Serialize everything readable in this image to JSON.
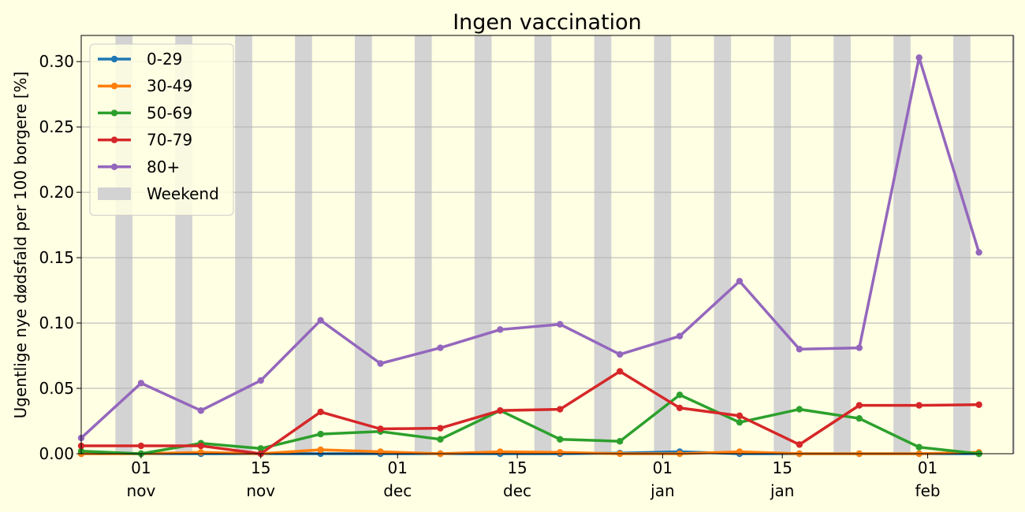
{
  "chart_data": {
    "type": "line",
    "title": "Ingen vaccination",
    "ylabel": "Ugentlige nye dødsfald per 100 borgere [%]",
    "xlabel": "",
    "ylim": [
      0,
      0.32
    ],
    "xlim": [
      "2020-10-25",
      "2021-02-11"
    ],
    "grid": "y",
    "legend": "top-left",
    "y_ticks": [
      0.0,
      0.05,
      0.1,
      0.15,
      0.2,
      0.25,
      0.3
    ],
    "y_tick_labels": [
      "0.00",
      "0.05",
      "0.10",
      "0.15",
      "0.20",
      "0.25",
      "0.30"
    ],
    "x_ticks": [
      {
        "date": "2020-11-01",
        "day": "01",
        "month": "nov"
      },
      {
        "date": "2020-11-15",
        "day": "15",
        "month": "nov"
      },
      {
        "date": "2020-12-01",
        "day": "01",
        "month": "dec"
      },
      {
        "date": "2020-12-15",
        "day": "15",
        "month": "dec"
      },
      {
        "date": "2021-01-01",
        "day": "01",
        "month": "jan"
      },
      {
        "date": "2021-01-15",
        "day": "15",
        "month": "jan"
      },
      {
        "date": "2021-02-01",
        "day": "01",
        "month": "feb"
      }
    ],
    "x": [
      "2020-10-25",
      "2020-11-01",
      "2020-11-08",
      "2020-11-15",
      "2020-11-22",
      "2020-11-29",
      "2020-12-06",
      "2020-12-13",
      "2020-12-20",
      "2020-12-27",
      "2021-01-03",
      "2021-01-10",
      "2021-01-17",
      "2021-01-24",
      "2021-01-31",
      "2021-02-07"
    ],
    "series": [
      {
        "name": "0-29",
        "color": "#1f77b4",
        "values": [
          0.0,
          0.0,
          0.0,
          0.0,
          0.0,
          0.0,
          0.0,
          0.0,
          0.0,
          0.0005,
          0.0015,
          0.0,
          0.0,
          0.0,
          0.0,
          0.0
        ]
      },
      {
        "name": "30-49",
        "color": "#ff7f0e",
        "values": [
          0.0,
          0.0,
          0.001,
          0.0,
          0.003,
          0.0015,
          0.0,
          0.0015,
          0.001,
          0.0,
          0.0,
          0.0015,
          0.0,
          0.0,
          0.0,
          0.001
        ]
      },
      {
        "name": "50-69",
        "color": "#2ca02c",
        "values": [
          0.002,
          0.0,
          0.008,
          0.004,
          0.015,
          0.017,
          0.011,
          0.033,
          0.011,
          0.0095,
          0.045,
          0.024,
          0.034,
          0.027,
          0.005,
          0.0
        ]
      },
      {
        "name": "70-79",
        "color": "#d62728",
        "values": [
          0.006,
          0.006,
          0.006,
          0.0,
          0.032,
          0.019,
          0.0195,
          0.033,
          0.034,
          0.063,
          0.035,
          0.029,
          0.007,
          0.037,
          0.037,
          0.0375
        ]
      },
      {
        "name": "80+",
        "color": "#9467bd",
        "values": [
          0.012,
          0.054,
          0.033,
          0.056,
          0.102,
          0.069,
          0.081,
          0.095,
          0.099,
          0.076,
          0.09,
          0.132,
          0.08,
          0.081,
          0.303,
          0.154
        ]
      }
    ],
    "weekend_label": "Weekend",
    "weekend_color": "#d3d3d3",
    "weekends": [
      [
        "2020-10-29",
        "2020-10-31"
      ],
      [
        "2020-11-05",
        "2020-11-07"
      ],
      [
        "2020-11-12",
        "2020-11-14"
      ],
      [
        "2020-11-19",
        "2020-11-21"
      ],
      [
        "2020-11-26",
        "2020-11-28"
      ],
      [
        "2020-12-03",
        "2020-12-05"
      ],
      [
        "2020-12-10",
        "2020-12-12"
      ],
      [
        "2020-12-17",
        "2020-12-19"
      ],
      [
        "2020-12-24",
        "2020-12-26"
      ],
      [
        "2020-12-31",
        "2021-01-02"
      ],
      [
        "2021-01-07",
        "2021-01-09"
      ],
      [
        "2021-01-14",
        "2021-01-16"
      ],
      [
        "2021-01-21",
        "2021-01-23"
      ],
      [
        "2021-01-28",
        "2021-01-30"
      ],
      [
        "2021-02-04",
        "2021-02-06"
      ],
      [
        "2021-02-11",
        "2021-02-11"
      ]
    ]
  }
}
